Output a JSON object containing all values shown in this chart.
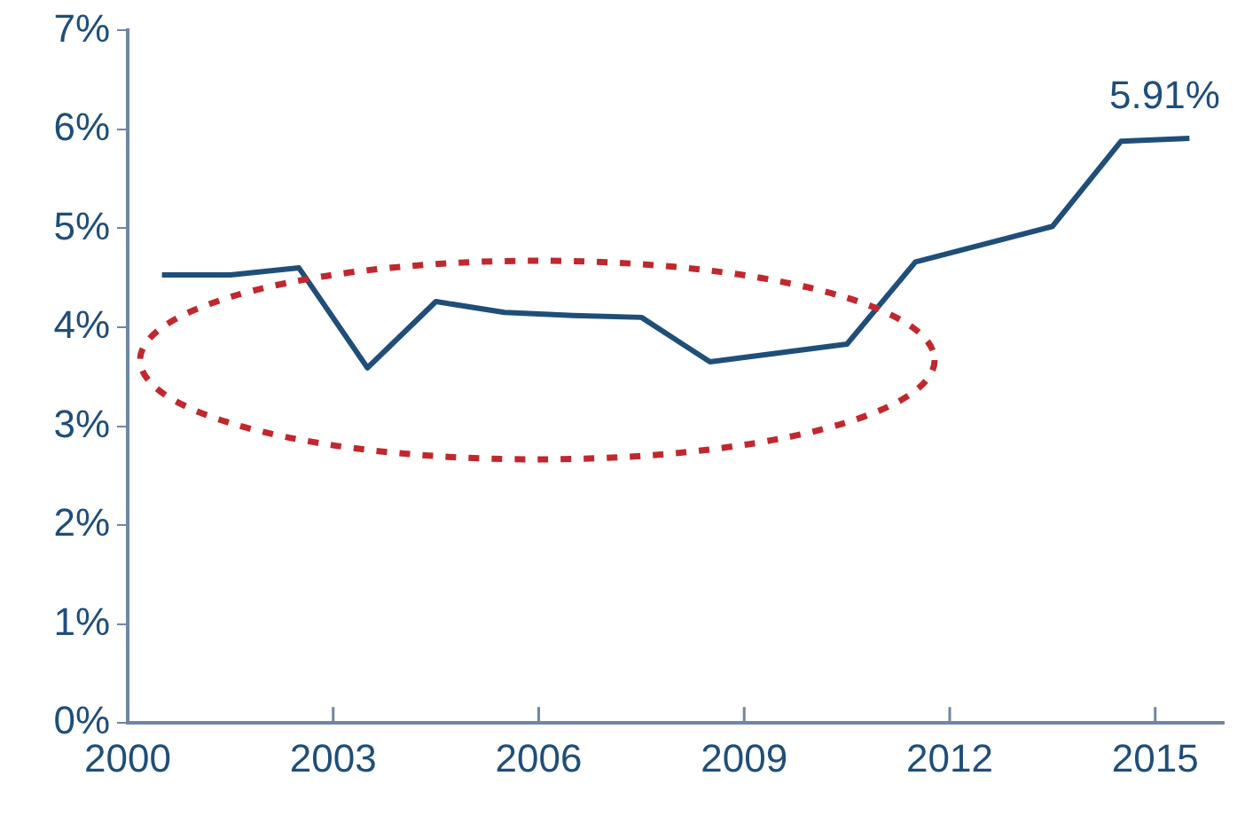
{
  "chart_data": {
    "type": "line",
    "x": [
      2000.5,
      2001.5,
      2002.5,
      2003.5,
      2004.5,
      2005.5,
      2006.5,
      2007.5,
      2008.5,
      2009.5,
      2010.5,
      2011.5,
      2012.5,
      2013.5,
      2014.5,
      2015.5
    ],
    "series": [
      {
        "color": "#1f4e79",
        "values": [
          4.53,
          4.53,
          4.6,
          3.59,
          4.26,
          4.15,
          4.12,
          4.1,
          3.65,
          3.74,
          3.83,
          4.66,
          4.84,
          5.02,
          5.88,
          5.91
        ],
        "value_labels": [
          null,
          null,
          null,
          null,
          null,
          null,
          null,
          null,
          null,
          null,
          null,
          null,
          null,
          null,
          null,
          "5.91%"
        ]
      }
    ],
    "xlim": [
      2000,
      2016
    ],
    "xticks": [
      2000,
      2003,
      2006,
      2009,
      2012,
      2015
    ],
    "ylim": [
      0,
      7
    ],
    "yticks": [
      {
        "value": 0,
        "label": "0%"
      },
      {
        "value": 1,
        "label": "1%"
      },
      {
        "value": 2,
        "label": "2%"
      },
      {
        "value": 3,
        "label": "3%"
      },
      {
        "value": 4,
        "label": "4%"
      },
      {
        "value": 5,
        "label": "5%"
      },
      {
        "value": 6,
        "label": "6%"
      },
      {
        "value": 7,
        "label": "7%"
      }
    ],
    "grid": false,
    "legend": false,
    "marker": "none",
    "line_style": "solid"
  }
}
